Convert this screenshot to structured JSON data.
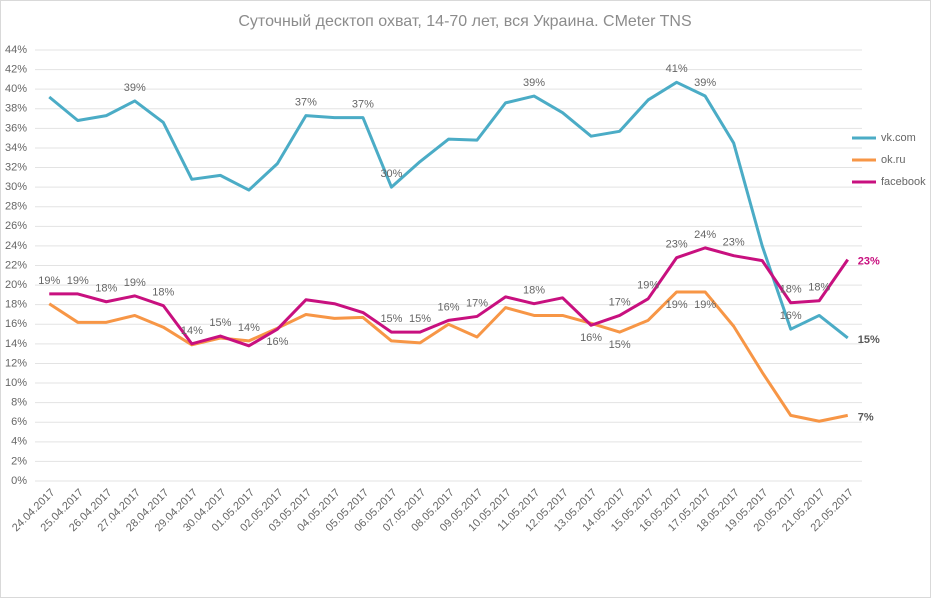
{
  "chart_data": {
    "type": "line",
    "title": "Суточный десктоп охват, 14-70 лет, вся Украина. CMeter TNS",
    "categories": [
      "24.04.2017",
      "25.04.2017",
      "26.04.2017",
      "27.04.2017",
      "28.04.2017",
      "29.04.2017",
      "30.04.2017",
      "01.05.2017",
      "02.05.2017",
      "03.05.2017",
      "04.05.2017",
      "05.05.2017",
      "06.05.2017",
      "07.05.2017",
      "08.05.2017",
      "09.05.2017",
      "10.05.2017",
      "11.05.2017",
      "12.05.2017",
      "13.05.2017",
      "14.05.2017",
      "15.05.2017",
      "16.05.2017",
      "17.05.2017",
      "18.05.2017",
      "19.05.2017",
      "20.05.2017",
      "21.05.2017",
      "22.05.2017"
    ],
    "series": [
      {
        "name": "vk.com",
        "color": "#4bacc6",
        "values": [
          39.2,
          36.8,
          37.3,
          38.8,
          36.6,
          30.8,
          31.2,
          29.7,
          32.4,
          37.3,
          37.1,
          37.1,
          30.0,
          32.6,
          34.9,
          34.8,
          38.6,
          39.3,
          37.6,
          35.2,
          35.7,
          38.9,
          40.7,
          39.3,
          34.5,
          24.0,
          15.5,
          16.9,
          14.6
        ],
        "value_labels": [
          null,
          null,
          null,
          "39%",
          null,
          null,
          null,
          null,
          null,
          "37%",
          null,
          "37%",
          "30%",
          null,
          null,
          null,
          null,
          "39%",
          null,
          null,
          null,
          null,
          "41%",
          "39%",
          null,
          null,
          "16%",
          null,
          "15%"
        ]
      },
      {
        "name": "ok.ru",
        "color": "#f79646",
        "values": [
          18.1,
          16.2,
          16.2,
          16.9,
          15.7,
          13.9,
          14.6,
          14.3,
          15.6,
          17.0,
          16.6,
          16.7,
          14.3,
          14.1,
          16.0,
          14.7,
          17.7,
          16.9,
          16.9,
          16.1,
          15.2,
          16.4,
          19.3,
          19.3,
          15.8,
          11.1,
          6.7,
          6.1,
          6.7
        ],
        "value_labels": [
          null,
          null,
          null,
          null,
          null,
          null,
          null,
          "14%",
          null,
          null,
          null,
          null,
          null,
          null,
          null,
          null,
          null,
          null,
          null,
          null,
          "15%",
          null,
          "19%",
          "19%",
          null,
          null,
          null,
          null,
          "7%"
        ]
      },
      {
        "name": "facebook",
        "color": "#c8107f",
        "values": [
          19.1,
          19.1,
          18.3,
          18.9,
          17.9,
          14.0,
          14.8,
          13.8,
          15.5,
          18.5,
          18.1,
          17.2,
          15.2,
          15.2,
          16.4,
          16.8,
          18.8,
          18.1,
          18.7,
          15.9,
          16.9,
          18.6,
          22.8,
          23.8,
          23.0,
          22.5,
          18.2,
          18.4,
          22.6
        ],
        "value_labels": [
          "19%",
          "19%",
          "18%",
          "19%",
          "18%",
          "14%",
          "15%",
          null,
          "16%",
          null,
          null,
          null,
          "15%",
          "15%",
          "16%",
          "17%",
          null,
          "18%",
          null,
          "16%",
          "17%",
          "19%",
          "23%",
          "24%",
          "23%",
          null,
          "18%",
          "18%",
          "23%"
        ]
      }
    ],
    "ylim": [
      0,
      44
    ],
    "yticks": [
      {
        "value": 0,
        "label": "0%"
      },
      {
        "value": 2,
        "label": "2%"
      },
      {
        "value": 4,
        "label": "4%"
      },
      {
        "value": 6,
        "label": "6%"
      },
      {
        "value": 8,
        "label": "8%"
      },
      {
        "value": 10,
        "label": "10%"
      },
      {
        "value": 12,
        "label": "12%"
      },
      {
        "value": 14,
        "label": "14%"
      },
      {
        "value": 16,
        "label": "16%"
      },
      {
        "value": 18,
        "label": "18%"
      },
      {
        "value": 20,
        "label": "20%"
      },
      {
        "value": 22,
        "label": "22%"
      },
      {
        "value": 24,
        "label": "24%"
      },
      {
        "value": 26,
        "label": "26%"
      },
      {
        "value": 28,
        "label": "28%"
      },
      {
        "value": 30,
        "label": "30%"
      },
      {
        "value": 32,
        "label": "32%"
      },
      {
        "value": 34,
        "label": "34%"
      },
      {
        "value": 36,
        "label": "36%"
      },
      {
        "value": 38,
        "label": "38%"
      },
      {
        "value": 40,
        "label": "40%"
      },
      {
        "value": 42,
        "label": "42%"
      },
      {
        "value": 44,
        "label": "44%"
      }
    ],
    "grid": true,
    "legend": "right"
  }
}
